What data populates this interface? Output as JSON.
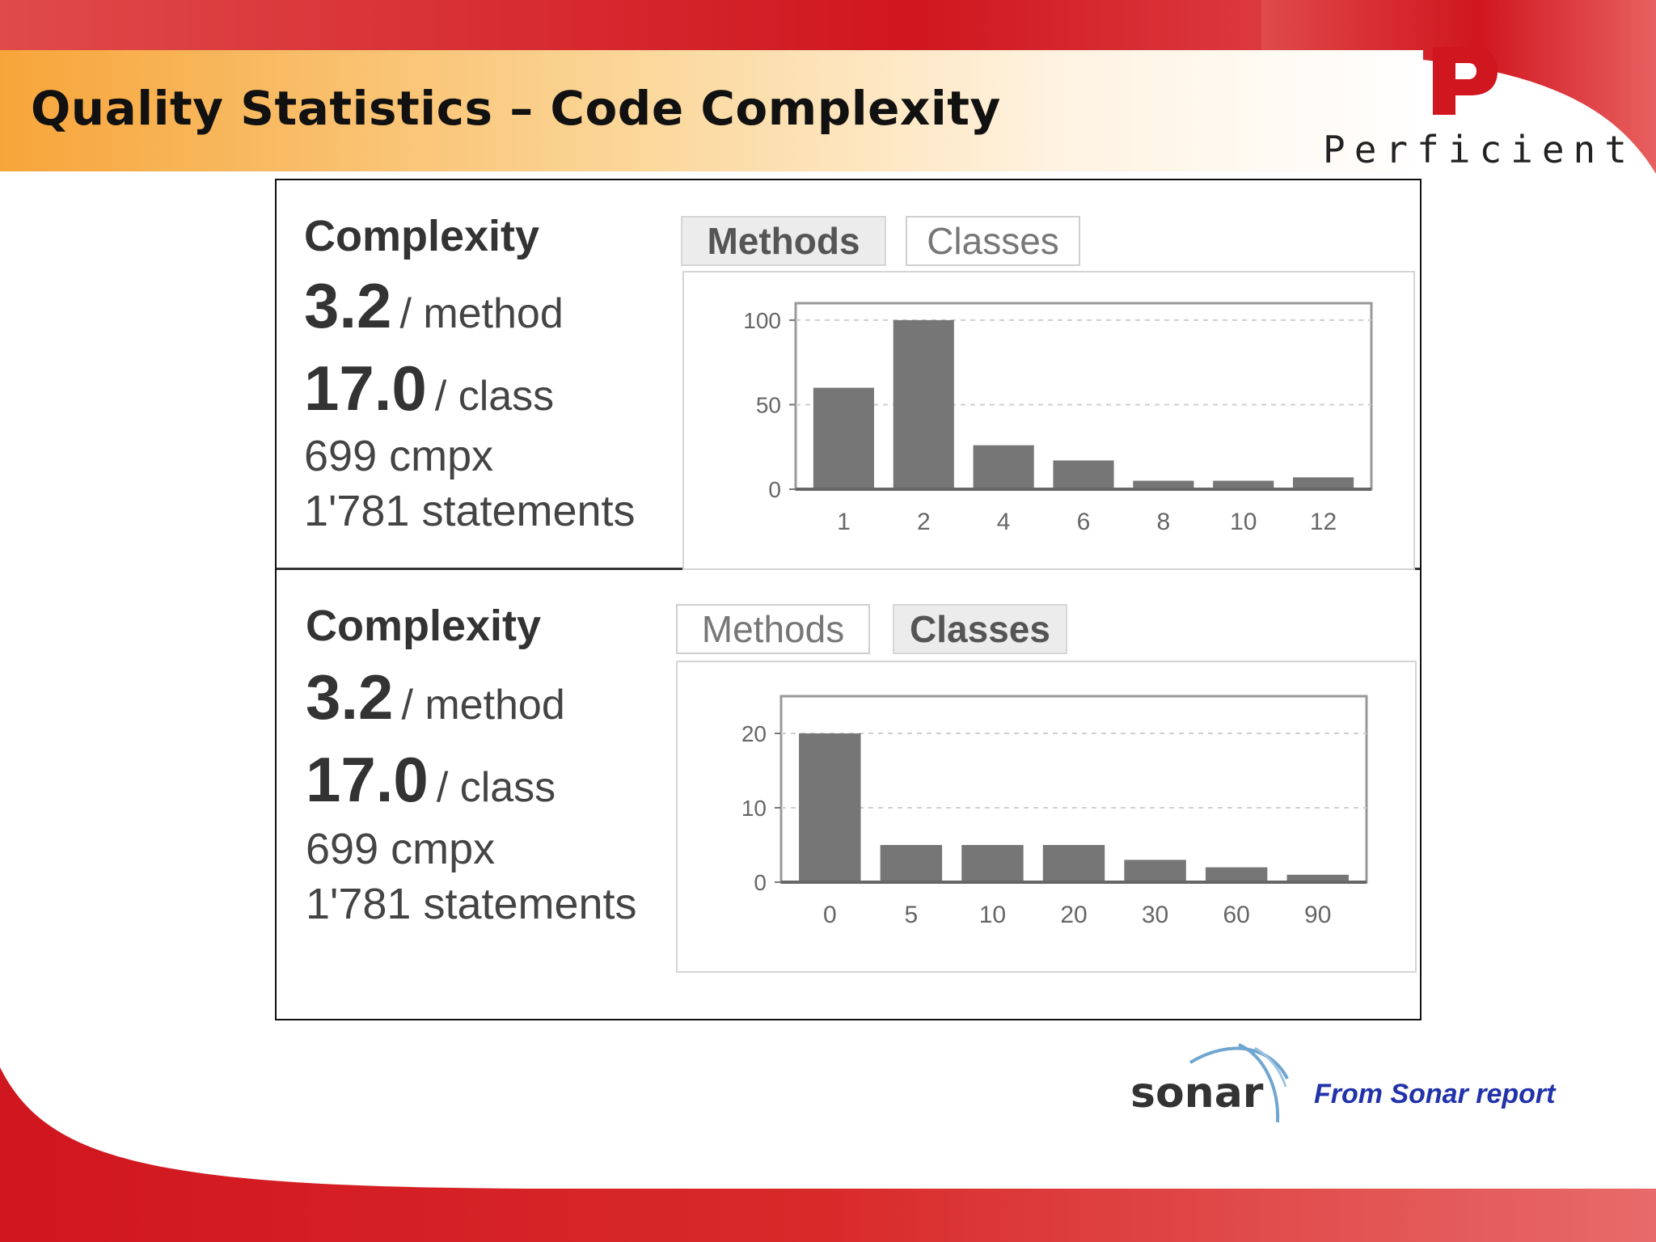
{
  "slide": {
    "title": "Quality Statistics – Code Complexity",
    "colors": {
      "red": "#d0161f",
      "orange": "#f9b04a",
      "text_dark": "#111111",
      "bar": "#767676",
      "note_blue": "#2233aa"
    }
  },
  "logo": {
    "mark": "P",
    "wordmark": "Perficient",
    "icon": "perficient-logo"
  },
  "panels": [
    {
      "title": "Complexity",
      "per_method_value": "3.2",
      "per_method_unit": "/ method",
      "per_class_value": "17.0",
      "per_class_unit": "/ class",
      "cmpx": "699 cmpx",
      "statements": "1'781 statements",
      "tabs": [
        {
          "label": "Methods",
          "active": true
        },
        {
          "label": "Classes",
          "active": false
        }
      ]
    },
    {
      "title": "Complexity",
      "per_method_value": "3.2",
      "per_method_unit": "/ method",
      "per_class_value": "17.0",
      "per_class_unit": "/ class",
      "cmpx": "699 cmpx",
      "statements": "1'781 statements",
      "tabs": [
        {
          "label": "Methods",
          "active": false
        },
        {
          "label": "Classes",
          "active": true
        }
      ]
    }
  ],
  "chart_data": [
    {
      "type": "bar",
      "categories": [
        "1",
        "2",
        "4",
        "6",
        "8",
        "10",
        "12"
      ],
      "values": [
        60,
        100,
        26,
        17,
        5,
        5,
        7
      ],
      "yticks": [
        "0",
        "50",
        "100"
      ],
      "ylim": [
        0,
        110
      ],
      "grid": "horizontal dashed",
      "legend": "none"
    },
    {
      "type": "bar",
      "categories": [
        "0",
        "5",
        "10",
        "20",
        "30",
        "60",
        "90"
      ],
      "values": [
        20,
        5,
        5,
        5,
        3,
        2,
        1
      ],
      "yticks": [
        "0",
        "10",
        "20"
      ],
      "ylim": [
        0,
        25
      ],
      "grid": "horizontal dashed",
      "legend": "none"
    }
  ],
  "footer": {
    "sonar_logo": "sonar",
    "note": "From Sonar report"
  }
}
